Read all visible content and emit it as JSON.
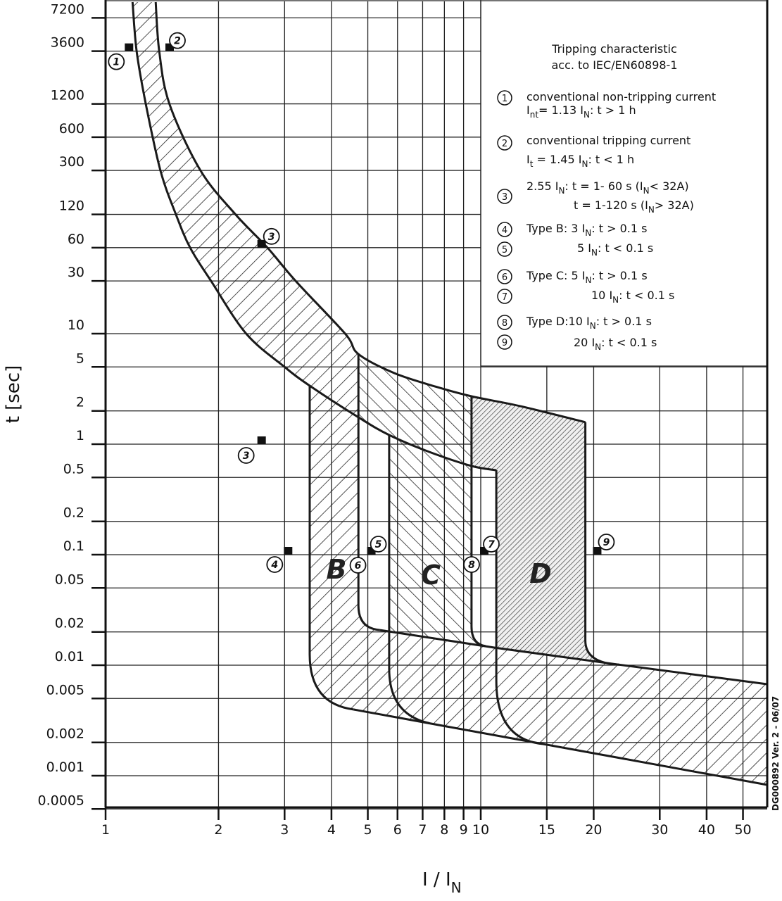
{
  "chart_data": {
    "type": "line",
    "title": "Tripping characteristic",
    "subtitle": "acc. to IEC/EN60898-1",
    "xlabel": "I / I",
    "xlabel_sub": "N",
    "ylabel": "t [sec]",
    "x_scale": "log",
    "y_scale": "log",
    "xlim": [
      1,
      58
    ],
    "ylim": [
      0.0005,
      10000
    ],
    "grid": true,
    "legend_position": "top-right",
    "x_ticks": [
      "1",
      "2",
      "3",
      "4",
      "5",
      "6",
      "7",
      "8",
      "9",
      "10",
      "15",
      "20",
      "30",
      "40",
      "50"
    ],
    "y_ticks": [
      "7200",
      "3600",
      "1200",
      "600",
      "300",
      "120",
      "60",
      "30",
      "10",
      "5",
      "2",
      "1",
      "0.5",
      "0.2",
      "0.1",
      "0.05",
      "0.02",
      "0.01",
      "0.005",
      "0.002",
      "0.001",
      "0.0005"
    ],
    "thermal_lower": [
      [
        1.18,
        10000
      ],
      [
        1.21,
        3600
      ],
      [
        1.28,
        1200
      ],
      [
        1.4,
        300
      ],
      [
        1.54,
        120
      ],
      [
        1.68,
        60
      ],
      [
        1.91,
        30
      ],
      [
        2.37,
        10
      ],
      [
        3.0,
        5
      ],
      [
        3.5,
        3.38
      ],
      [
        4.72,
        1.75
      ],
      [
        5.7,
        1.21
      ],
      [
        7.3,
        0.85
      ],
      [
        9.45,
        0.635
      ],
      [
        11.0,
        0.581
      ]
    ],
    "thermal_upper": [
      [
        1.36,
        10000
      ],
      [
        1.39,
        3600
      ],
      [
        1.48,
        1200
      ],
      [
        1.79,
        300
      ],
      [
        2.22,
        120
      ],
      [
        2.7,
        60
      ],
      [
        3.21,
        30
      ],
      [
        4.35,
        10
      ],
      [
        4.72,
        6.54
      ],
      [
        5.88,
        4.4
      ],
      [
        7.62,
        3.3
      ],
      [
        9.45,
        2.71
      ],
      [
        12.8,
        2.2
      ],
      [
        19.0,
        1.58
      ]
    ],
    "B_left": [
      [
        3.5,
        3.38
      ],
      [
        3.5,
        0.0125
      ],
      [
        3.5,
        0.00447,
        "c"
      ],
      [
        4.59,
        0.00397
      ]
    ],
    "B_right": [
      [
        4.72,
        6.54
      ],
      [
        4.72,
        0.0348
      ],
      [
        4.72,
        0.0215,
        "c"
      ],
      [
        5.39,
        0.0208
      ]
    ],
    "C_left": [
      [
        5.7,
        1.21
      ],
      [
        5.7,
        0.00929
      ],
      [
        5.7,
        0.00358,
        "c"
      ],
      [
        7.3,
        0.00298
      ]
    ],
    "C_right": [
      [
        9.45,
        2.71
      ],
      [
        9.45,
        0.0224
      ],
      [
        9.45,
        0.0155,
        "c"
      ],
      [
        10.3,
        0.0149
      ]
    ],
    "D_left": [
      [
        11.0,
        0.581
      ],
      [
        11.0,
        0.00724
      ],
      [
        11.0,
        0.00214,
        "c"
      ],
      [
        14.6,
        0.00194
      ]
    ],
    "D_right": [
      [
        19.0,
        1.58
      ],
      [
        19.0,
        0.0167
      ],
      [
        19.0,
        0.01045,
        "c"
      ],
      [
        23.4,
        0.0101
      ]
    ],
    "instant_upper": [
      [
        5.39,
        0.0208
      ],
      [
        10.9,
        0.0144
      ],
      [
        23.4,
        0.0101
      ],
      [
        58,
        0.00673
      ]
    ],
    "instant_lower": [
      [
        4.59,
        0.00397
      ],
      [
        58,
        0.000826
      ]
    ],
    "region_labels": [
      "B",
      "C",
      "D"
    ],
    "markers": [
      {
        "label": "1",
        "I": 1.13,
        "t": 3600
      },
      {
        "label": "2",
        "I": 1.45,
        "t": 3600
      },
      {
        "label": "3",
        "I": 2.55,
        "t": 60
      },
      {
        "label": "3",
        "I": 2.55,
        "t": 1
      },
      {
        "label": "4",
        "I": 3,
        "t": 0.1
      },
      {
        "label": "5",
        "I": 5,
        "t": 0.1
      },
      {
        "label": "6",
        "I": 5,
        "t": 0.1
      },
      {
        "label": "7",
        "I": 10,
        "t": 0.1
      },
      {
        "label": "8",
        "I": 10,
        "t": 0.1
      },
      {
        "label": "9",
        "I": 20,
        "t": 0.1
      }
    ],
    "legend": [
      {
        "num": "1",
        "lines": [
          [
            [
              "conventional non-tripping current",
              0
            ]
          ],
          [
            [
              "I",
              0
            ],
            [
              "nt",
              1
            ],
            [
              "= 1.13 I",
              0
            ],
            [
              "N",
              1
            ],
            [
              ": t > 1 h",
              0
            ]
          ]
        ]
      },
      {
        "num": "2",
        "lines": [
          [
            [
              "conventional tripping current",
              0
            ]
          ],
          [
            [
              "I",
              0
            ],
            [
              "t",
              1
            ],
            [
              " = 1.45 I",
              0
            ],
            [
              "N",
              1
            ],
            [
              ": t < 1 h",
              0
            ]
          ]
        ]
      },
      {
        "num": "3",
        "lines": [
          [
            [
              "2.55 I",
              0
            ],
            [
              "N",
              1
            ],
            [
              ": t = 1- 60 s (I",
              0
            ],
            [
              "N",
              1
            ],
            [
              "< 32A)",
              0
            ]
          ],
          [
            [
              "t = 1-120 s (I",
              0
            ],
            [
              "N",
              1
            ],
            [
              "> 32A)",
              0
            ]
          ]
        ]
      },
      {
        "num": "4",
        "lines": [
          [
            [
              "Type B: 3 I",
              0
            ],
            [
              "N",
              1
            ],
            [
              ": t > 0.1 s",
              0
            ]
          ]
        ]
      },
      {
        "num": "5",
        "lines": [
          [
            [
              "5 I",
              0
            ],
            [
              "N",
              1
            ],
            [
              ": t < 0.1 s",
              0
            ]
          ]
        ]
      },
      {
        "num": "6",
        "lines": [
          [
            [
              "Type C: 5 I",
              0
            ],
            [
              "N",
              1
            ],
            [
              ": t > 0.1 s",
              0
            ]
          ]
        ]
      },
      {
        "num": "7",
        "lines": [
          [
            [
              "10 I",
              0
            ],
            [
              "N",
              1
            ],
            [
              ": t < 0.1 s",
              0
            ]
          ]
        ]
      },
      {
        "num": "8",
        "lines": [
          [
            [
              "Type D:10 I",
              0
            ],
            [
              "N",
              1
            ],
            [
              ": t > 0.1 s",
              0
            ]
          ]
        ]
      },
      {
        "num": "9",
        "lines": [
          [
            [
              "20 I",
              0
            ],
            [
              "N",
              1
            ],
            [
              ": t < 0.1 s",
              0
            ]
          ]
        ]
      }
    ],
    "doc_code": "DG000892 Ver. 2 - 06/07",
    "colors": {
      "line": "#1a1a1a",
      "grid": "#222222",
      "background": "#ffffff",
      "d_hatch": "#333333"
    }
  }
}
